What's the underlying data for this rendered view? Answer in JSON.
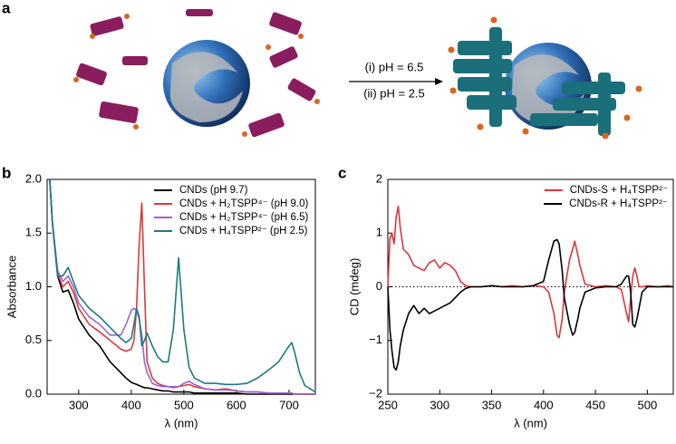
{
  "figure": {
    "panel_labels": [
      "a",
      "b",
      "c"
    ],
    "scheme_steps": [
      "(i) pH = 6.5",
      "(ii) pH = 2.5"
    ]
  },
  "chart_data": [
    {
      "type": "line",
      "xlabel": "λ (nm)",
      "ylabel": "Absorbance",
      "legend": "upper right",
      "xlim": [
        240,
        750
      ],
      "xticks": [
        300,
        400,
        500,
        600,
        700
      ],
      "ylim": [
        0,
        2
      ],
      "yticks": [
        {
          "value": 0,
          "label": "0.0"
        },
        {
          "value": 0.5,
          "label": "0.5"
        },
        {
          "value": 1,
          "label": "1.0"
        },
        {
          "value": 1.5,
          "label": "1.5"
        },
        {
          "value": 2,
          "label": "2.0"
        }
      ],
      "x": [
        245,
        250,
        260,
        270,
        280,
        290,
        300,
        320,
        340,
        360,
        380,
        390,
        400,
        405,
        410,
        415,
        420,
        425,
        430,
        440,
        450,
        460,
        470,
        480,
        490,
        500,
        510,
        520,
        540,
        560,
        580,
        600,
        620,
        640,
        660,
        680,
        700,
        705,
        710,
        720,
        730,
        750
      ],
      "series": [
        {
          "name": "CNDs (pH 9.7)",
          "color": "#000000",
          "values": [
            2.0,
            1.6,
            1.1,
            0.95,
            0.97,
            0.85,
            0.7,
            0.55,
            0.45,
            0.3,
            0.2,
            0.15,
            0.11,
            0.1,
            0.09,
            0.08,
            0.07,
            0.06,
            0.06,
            0.05,
            0.04,
            0.03,
            0.03,
            0.02,
            0.02,
            0.02,
            0.02,
            0.01,
            0.01,
            0.01,
            0.01,
            0.01,
            0,
            0,
            0,
            0,
            0,
            0,
            0,
            0,
            0,
            0
          ]
        },
        {
          "name": "CNDs + H₂TSPP⁴⁻ (pH 9.0)",
          "color": "#d93a3a",
          "values": [
            2.0,
            1.6,
            1.12,
            1.0,
            1.05,
            0.95,
            0.8,
            0.65,
            0.58,
            0.5,
            0.42,
            0.4,
            0.42,
            0.5,
            0.8,
            1.4,
            1.78,
            1.0,
            0.3,
            0.15,
            0.1,
            0.08,
            0.07,
            0.06,
            0.07,
            0.08,
            0.09,
            0.07,
            0.05,
            0.04,
            0.05,
            0.03,
            0.02,
            0.02,
            0.01,
            0.01,
            0.01,
            0.01,
            0,
            0,
            0,
            0
          ]
        },
        {
          "name": "CNDs + H₂TSPP⁴⁻ (pH 6.5)",
          "color": "#9966cc",
          "values": [
            2.0,
            1.6,
            1.15,
            1.05,
            1.1,
            1.0,
            0.85,
            0.72,
            0.65,
            0.55,
            0.55,
            0.65,
            0.78,
            0.8,
            0.78,
            0.7,
            0.55,
            0.3,
            0.2,
            0.1,
            0.08,
            0.07,
            0.07,
            0.07,
            0.07,
            0.1,
            0.12,
            0.09,
            0.05,
            0.04,
            0.04,
            0.03,
            0.02,
            0.02,
            0.01,
            0.01,
            0.01,
            0.01,
            0,
            0,
            0,
            0
          ]
        },
        {
          "name": "CNDs + H₄TSPP²⁻ (pH 2.5)",
          "color": "#1a7a80",
          "values": [
            2.0,
            1.6,
            1.1,
            1.1,
            1.18,
            1.05,
            0.92,
            0.8,
            0.72,
            0.62,
            0.52,
            0.48,
            0.52,
            0.65,
            0.8,
            0.72,
            0.45,
            0.5,
            0.57,
            0.45,
            0.35,
            0.3,
            0.3,
            0.6,
            1.27,
            0.6,
            0.25,
            0.15,
            0.1,
            0.1,
            0.09,
            0.09,
            0.1,
            0.15,
            0.22,
            0.3,
            0.45,
            0.48,
            0.4,
            0.2,
            0.08,
            0.02
          ]
        }
      ]
    },
    {
      "type": "line",
      "xlabel": "λ (nm)",
      "ylabel": "CD (mdeg)",
      "legend": "upper right",
      "xlim": [
        250,
        525
      ],
      "xticks": [
        250,
        300,
        350,
        400,
        450,
        500
      ],
      "ylim": [
        -2,
        2
      ],
      "yticks": [
        {
          "value": -2,
          "label": "−2"
        },
        {
          "value": -1,
          "label": "−1"
        },
        0,
        1,
        2
      ],
      "x": [
        250,
        252,
        254,
        256,
        258,
        260,
        262,
        265,
        270,
        275,
        280,
        285,
        290,
        295,
        300,
        305,
        310,
        315,
        320,
        325,
        330,
        340,
        350,
        360,
        370,
        380,
        390,
        400,
        405,
        410,
        413,
        415,
        418,
        420,
        425,
        428,
        430,
        433,
        435,
        440,
        450,
        460,
        470,
        475,
        480,
        482,
        484,
        486,
        488,
        490,
        492,
        495,
        500,
        510,
        520,
        525
      ],
      "series": [
        {
          "name": "CNDs-S + H₄TSPP²⁻",
          "color": "#d9363e",
          "values": [
            0,
            0.9,
            1.0,
            0.8,
            1.3,
            1.5,
            1.1,
            0.7,
            0.6,
            0.4,
            0.35,
            0.3,
            0.45,
            0.5,
            0.35,
            0.45,
            0.4,
            0.3,
            0.1,
            0.02,
            0,
            0,
            0.02,
            0,
            0.02,
            0,
            0.02,
            0,
            -0.1,
            -0.5,
            -0.9,
            -0.95,
            -0.6,
            -0.1,
            0.5,
            0.7,
            0.85,
            0.6,
            0.4,
            0.05,
            0,
            0.02,
            0,
            -0.05,
            -0.5,
            -0.65,
            -0.2,
            0.2,
            0.35,
            0.2,
            0,
            0,
            0.02,
            0,
            0.02,
            0
          ]
        },
        {
          "name": "CNDs-R + H₄TSPP²⁻",
          "color": "#000000",
          "values": [
            0,
            -0.8,
            -1.2,
            -1.5,
            -1.55,
            -1.4,
            -1.1,
            -0.8,
            -0.5,
            -0.35,
            -0.5,
            -0.4,
            -0.5,
            -0.45,
            -0.4,
            -0.35,
            -0.3,
            -0.2,
            -0.1,
            -0.03,
            0,
            0,
            0.02,
            0,
            0,
            0,
            0.02,
            0.1,
            0.5,
            0.85,
            0.88,
            0.8,
            0.3,
            -0.2,
            -0.7,
            -0.9,
            -0.85,
            -0.6,
            -0.4,
            -0.1,
            -0.02,
            0,
            0,
            0.05,
            0.2,
            0.2,
            -0.1,
            -0.7,
            -0.75,
            -0.6,
            -0.4,
            -0.1,
            0,
            0,
            0,
            0
          ]
        }
      ]
    }
  ]
}
